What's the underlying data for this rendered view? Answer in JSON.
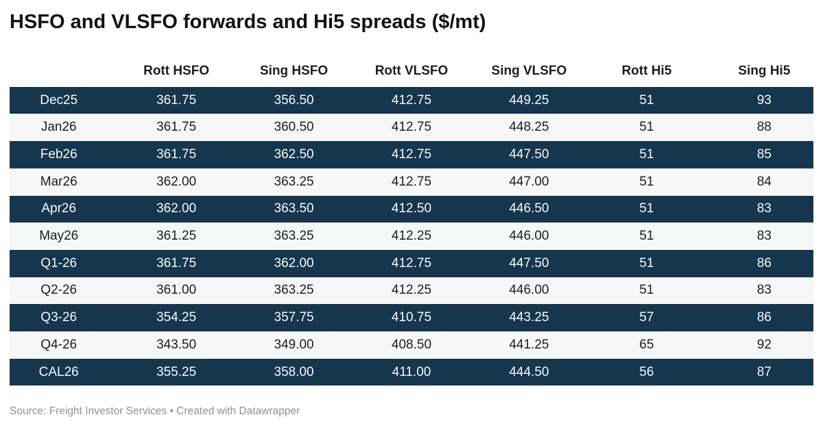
{
  "header": {
    "title": "HSFO and VLSFO forwards and Hi5 spreads ($/mt)"
  },
  "chart_data": {
    "type": "table",
    "title": "HSFO and VLSFO forwards and Hi5 spreads ($/mt)",
    "unit": "$/mt",
    "columns": [
      "",
      "Rott HSFO",
      "Sing HSFO",
      "Rott VLSFO",
      "Sing VLSFO",
      "Rott Hi5",
      "Sing Hi5"
    ],
    "rows": [
      {
        "label": "Dec25",
        "values": [
          "361.75",
          "356.50",
          "412.75",
          "449.25",
          "51",
          "93"
        ]
      },
      {
        "label": "Jan26",
        "values": [
          "361.75",
          "360.50",
          "412.75",
          "448.25",
          "51",
          "88"
        ]
      },
      {
        "label": "Feb26",
        "values": [
          "361.75",
          "362.50",
          "412.75",
          "447.50",
          "51",
          "85"
        ]
      },
      {
        "label": "Mar26",
        "values": [
          "362.00",
          "363.25",
          "412.75",
          "447.00",
          "51",
          "84"
        ]
      },
      {
        "label": "Apr26",
        "values": [
          "362.00",
          "363.50",
          "412.50",
          "446.50",
          "51",
          "83"
        ]
      },
      {
        "label": "May26",
        "values": [
          "361.25",
          "363.25",
          "412.25",
          "446.00",
          "51",
          "83"
        ]
      },
      {
        "label": "Q1-26",
        "values": [
          "361.75",
          "362.00",
          "412.75",
          "447.50",
          "51",
          "86"
        ]
      },
      {
        "label": "Q2-26",
        "values": [
          "361.00",
          "363.25",
          "412.25",
          "446.00",
          "51",
          "83"
        ]
      },
      {
        "label": "Q3-26",
        "values": [
          "354.25",
          "357.75",
          "410.75",
          "443.25",
          "57",
          "86"
        ]
      },
      {
        "label": "Q4-26",
        "values": [
          "343.50",
          "349.00",
          "408.50",
          "441.25",
          "65",
          "92"
        ]
      },
      {
        "label": "CAL26",
        "values": [
          "355.25",
          "358.00",
          "411.00",
          "444.50",
          "56",
          "87"
        ]
      }
    ],
    "layout_hints": {
      "stripe_pattern": "alternating rows starting dark",
      "alignment": "all cells centered"
    }
  },
  "colors": {
    "dark_row_bg": "#15364d",
    "light_row_bg": "#f6f7f7",
    "dark_row_text": "#f7fafc",
    "light_row_text": "#1d1d1d",
    "title_text": "#111111",
    "footer_text": "#919191",
    "page_bg": "#ffffff"
  },
  "footer": {
    "source_text": "Source: Freight Investor Services • Created with Datawrapper"
  }
}
